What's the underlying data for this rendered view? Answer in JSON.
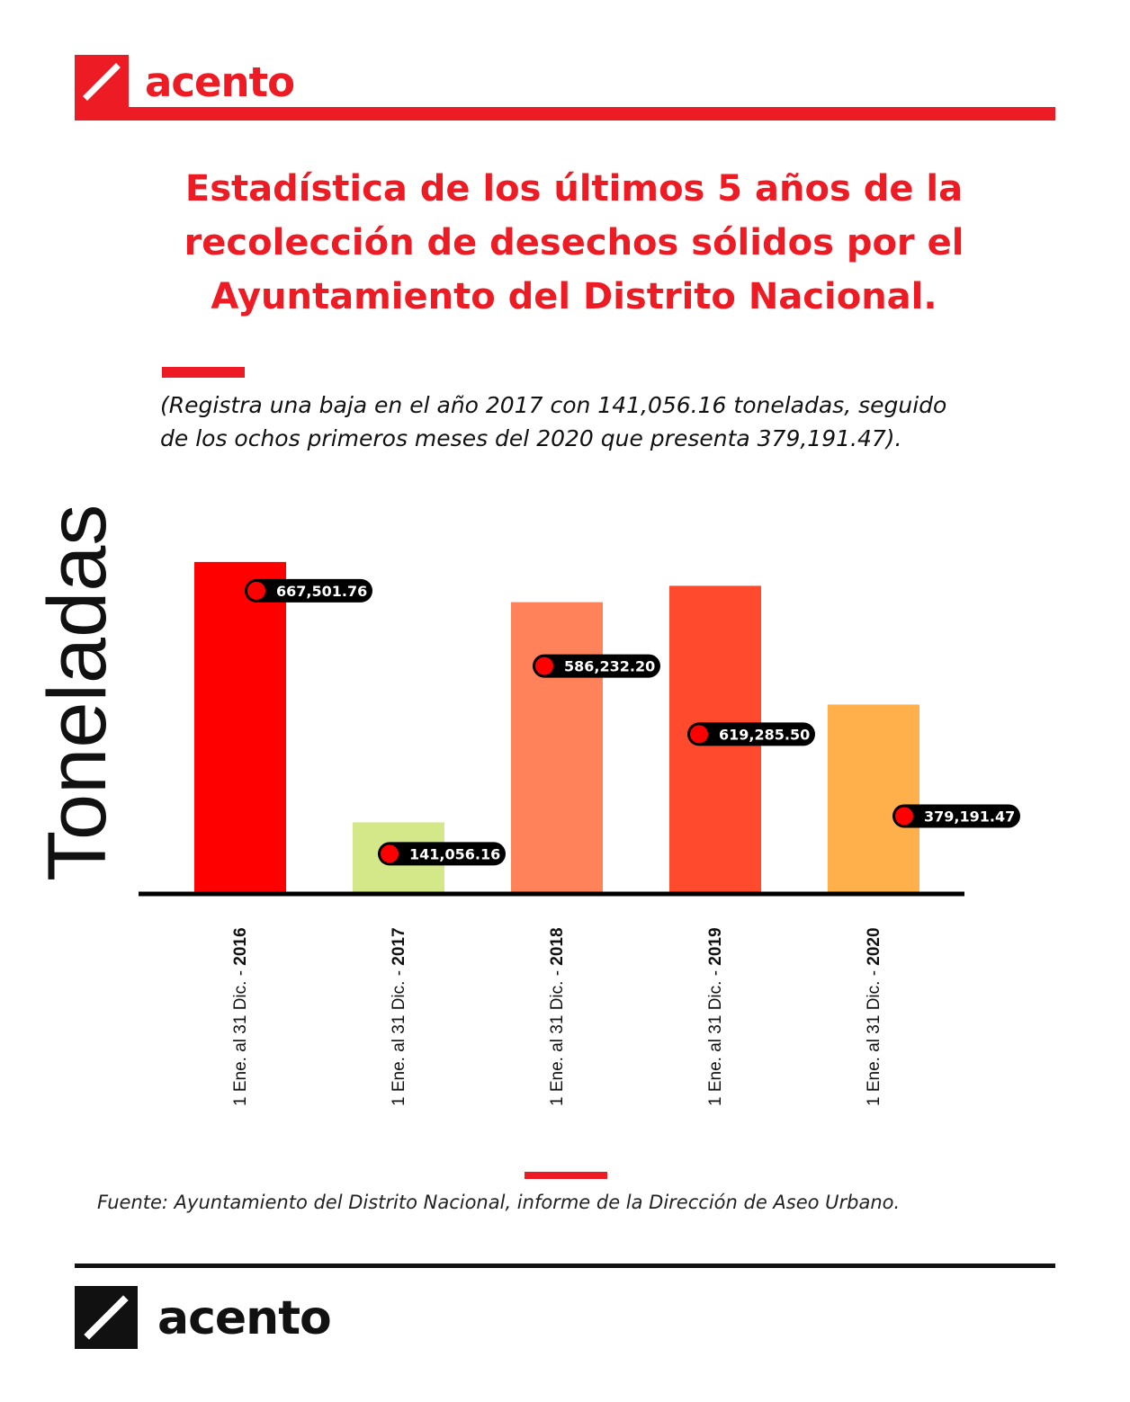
{
  "brand": {
    "name": "acento",
    "primary_color": "#ed1c24",
    "dark_color": "#111111",
    "logo_icon": "slash-icon"
  },
  "title": "Estadística de los últimos 5 años de la recolección de desechos sólidos por el Ayuntamiento del Distrito Nacional.",
  "subtitle": "(Registra una baja en el año 2017 con 141,056.16 toneladas, seguido de los ochos primeros meses del 2020 que presenta 379,191.47).",
  "chart_data": {
    "type": "bar",
    "ylabel": "Toneladas",
    "categories": [
      "1 Ene. al 31 Dic. - 2016",
      "1 Ene. al 31 Dic. - 2017",
      "1 Ene. al 31 Dic. - 2018",
      "1 Ene. al 31 Dic. - 2019",
      "1 Ene. al 31 Dic. - 2020"
    ],
    "category_prefix": "1 Ene. al 31 Dic. - ",
    "category_years": [
      "2016",
      "2017",
      "2018",
      "2019",
      "2020"
    ],
    "values": [
      667501.76,
      141056.16,
      586232.2,
      619285.5,
      379191.47
    ],
    "data_labels": [
      "667,501.76",
      "141,056.16",
      "586,232.20",
      "619,285.50",
      "379,191.47"
    ],
    "bar_colors": [
      "#ff0000",
      "#d4e88a",
      "#ff825a",
      "#ff4a2e",
      "#ffb04a"
    ],
    "marker_color": "#ff0000",
    "label_bg": "#000000",
    "ylim": [
      0,
      680000
    ],
    "grid": false,
    "legend": "none"
  },
  "source": "Fuente: Ayuntamiento del Distrito Nacional, informe de la Dirección de Aseo Urbano."
}
